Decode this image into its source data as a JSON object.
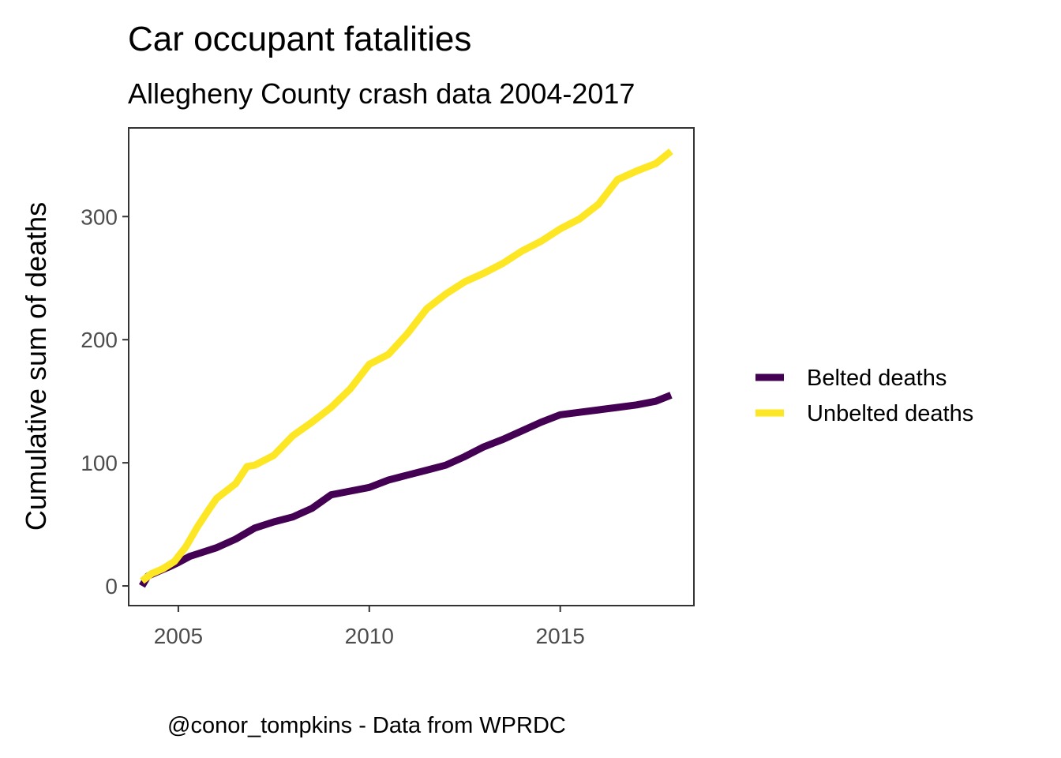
{
  "chart_data": {
    "type": "line",
    "title": "Car occupant fatalities",
    "subtitle": "Allegheny County crash data 2004-2017",
    "ylabel": "Cumulative sum of deaths",
    "xlabel": "",
    "caption": "@conor_tompkins - Data from WPRDC",
    "xlim": [
      2003.7,
      2018.5
    ],
    "ylim": [
      -16,
      372
    ],
    "x_ticks": [
      2005,
      2010,
      2015
    ],
    "x_tick_labels": [
      "2005",
      "2010",
      "2015"
    ],
    "y_ticks": [
      0,
      100,
      200,
      300
    ],
    "y_tick_labels": [
      "0",
      "100",
      "200",
      "300"
    ],
    "grid": false,
    "legend_position": "right",
    "series": [
      {
        "name": "Belted deaths",
        "color": "#440154",
        "x": [
          2004.05,
          2004.2,
          2004.5,
          2004.8,
          2005.0,
          2005.3,
          2005.7,
          2006.0,
          2006.5,
          2007.0,
          2007.5,
          2008.0,
          2008.5,
          2009.0,
          2009.5,
          2010.0,
          2010.5,
          2011.0,
          2011.5,
          2012.0,
          2012.5,
          2013.0,
          2013.5,
          2014.0,
          2014.5,
          2015.0,
          2015.5,
          2016.0,
          2016.5,
          2017.0,
          2017.5,
          2017.9
        ],
        "y": [
          0,
          8,
          12,
          16,
          19,
          24,
          28,
          31,
          38,
          47,
          52,
          56,
          63,
          74,
          77,
          80,
          86,
          90,
          94,
          98,
          105,
          113,
          119,
          126,
          133,
          139,
          141,
          143,
          145,
          147,
          150,
          155
        ]
      },
      {
        "name": "Unbelted deaths",
        "color": "#fde725",
        "x": [
          2004.05,
          2004.3,
          2004.6,
          2004.9,
          2005.2,
          2005.5,
          2005.8,
          2006.0,
          2006.5,
          2006.8,
          2007.0,
          2007.5,
          2008.0,
          2008.5,
          2009.0,
          2009.5,
          2010.0,
          2010.5,
          2011.0,
          2011.5,
          2012.0,
          2012.5,
          2013.0,
          2013.5,
          2014.0,
          2014.5,
          2015.0,
          2015.5,
          2016.0,
          2016.5,
          2017.0,
          2017.5,
          2017.9
        ],
        "y": [
          4,
          10,
          14,
          20,
          32,
          48,
          62,
          71,
          83,
          97,
          98,
          106,
          122,
          133,
          145,
          160,
          180,
          188,
          205,
          225,
          237,
          247,
          254,
          262,
          272,
          280,
          290,
          298,
          310,
          330,
          337,
          343,
          353
        ]
      }
    ]
  }
}
